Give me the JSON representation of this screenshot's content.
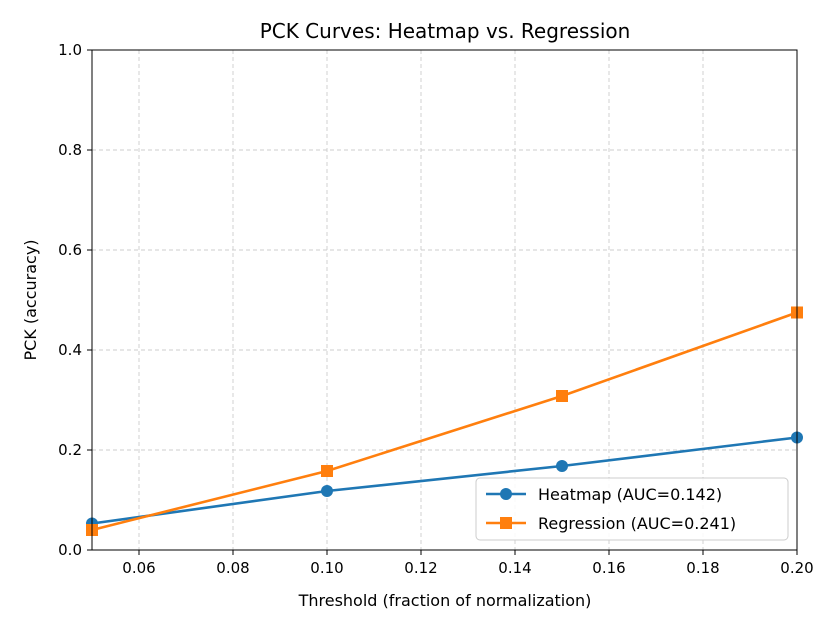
{
  "chart_data": {
    "type": "line",
    "title": "PCK Curves: Heatmap vs. Regression",
    "xlabel": "Threshold (fraction of normalization)",
    "ylabel": "PCK (accuracy)",
    "xlim": [
      0.05,
      0.2
    ],
    "ylim": [
      0.0,
      1.0
    ],
    "xticks": [
      "0.06",
      "0.08",
      "0.10",
      "0.12",
      "0.14",
      "0.16",
      "0.18",
      "0.20"
    ],
    "xtick_values": [
      0.06,
      0.08,
      0.1,
      0.12,
      0.14,
      0.16,
      0.18,
      0.2
    ],
    "yticks": [
      "0.0",
      "0.2",
      "0.4",
      "0.6",
      "0.8",
      "1.0"
    ],
    "ytick_values": [
      0.0,
      0.2,
      0.4,
      0.6,
      0.8,
      1.0
    ],
    "grid": true,
    "legend_position": "lower-right",
    "series": [
      {
        "name": "Heatmap (AUC=0.142)",
        "color": "#1f77b4",
        "marker": "circle",
        "x": [
          0.05,
          0.1,
          0.15,
          0.2
        ],
        "y": [
          0.053,
          0.118,
          0.168,
          0.225
        ]
      },
      {
        "name": "Regression (AUC=0.241)",
        "color": "#ff7f0e",
        "marker": "square",
        "x": [
          0.05,
          0.1,
          0.15,
          0.2
        ],
        "y": [
          0.04,
          0.158,
          0.308,
          0.475
        ]
      }
    ]
  }
}
